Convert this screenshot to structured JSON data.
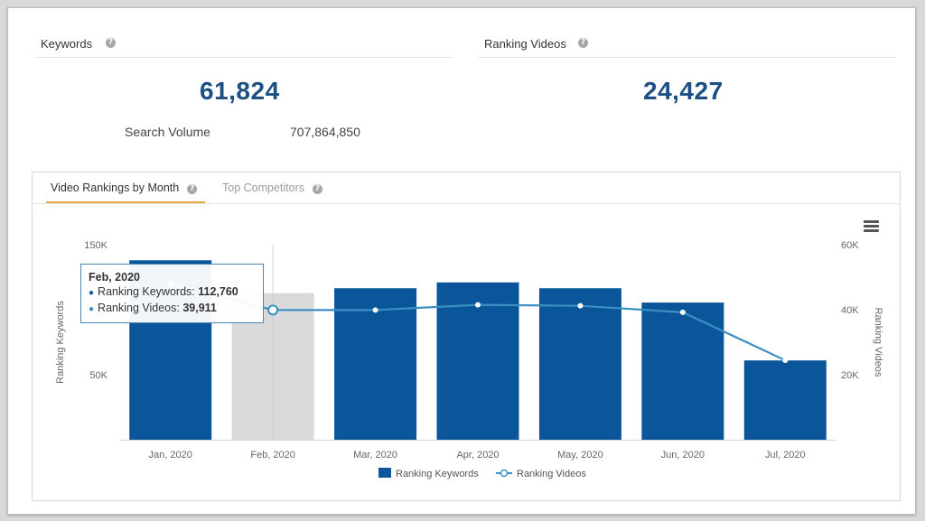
{
  "stats": {
    "keywords": {
      "label": "Keywords",
      "value": "61,824"
    },
    "ranking_videos": {
      "label": "Ranking Videos",
      "value": "24,427"
    },
    "search_volume": {
      "label": "Search Volume",
      "value": "707,864,850"
    }
  },
  "tabs": [
    {
      "label": "Video Rankings by Month",
      "active": true
    },
    {
      "label": "Top Competitors",
      "active": false
    }
  ],
  "icons": {
    "help": "help-circle-icon",
    "menu": "hamburger-menu-icon"
  },
  "colors": {
    "bar": "#0b559b",
    "bar_highlight": "#dadada",
    "line": "#3a8fc4",
    "accent_tab": "#e8a849",
    "number": "#1c4f82"
  },
  "tooltip": {
    "title": "Feb, 2020",
    "rows": [
      {
        "label": "Ranking Keywords:",
        "value": "112,760"
      },
      {
        "label": "Ranking Videos:",
        "value": "39,911"
      }
    ]
  },
  "chart_data": {
    "type": "bar",
    "categories": [
      "Jan, 2020",
      "Feb, 2020",
      "Mar, 2020",
      "Apr, 2020",
      "May, 2020",
      "Jun, 2020",
      "Jul, 2020"
    ],
    "series": [
      {
        "name": "Ranking Keywords",
        "type": "bar",
        "axis": "left",
        "values": [
          138000,
          112760,
          116500,
          121000,
          116500,
          105500,
          61000
        ]
      },
      {
        "name": "Ranking Videos",
        "type": "line",
        "axis": "right",
        "values": [
          48000,
          39911,
          39900,
          41500,
          41200,
          39200,
          24427
        ]
      }
    ],
    "ylabel": "Ranking Keywords",
    "y2label": "Ranking Videos",
    "ylim": [
      0,
      150000
    ],
    "y2lim": [
      0,
      60000
    ],
    "yticks": [
      "50K",
      "100K",
      "150K"
    ],
    "y2ticks": [
      "20K",
      "40K",
      "60K"
    ],
    "highlighted_category": "Feb, 2020",
    "legend_position": "bottom-center",
    "grid": false
  }
}
